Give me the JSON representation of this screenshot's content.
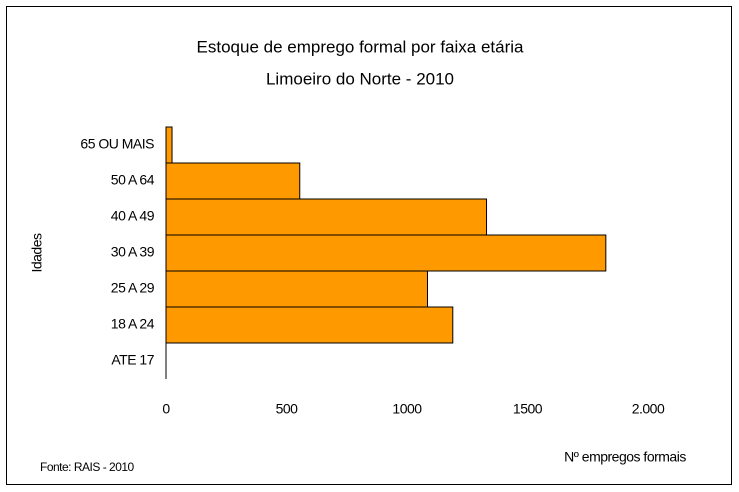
{
  "chart_data": {
    "type": "bar",
    "orientation": "horizontal",
    "title": "Estoque de emprego formal por faixa etária",
    "subtitle": "Limoeiro do Norte  - 2010",
    "y_label": "Idades",
    "x_label": "Nº empregos formais",
    "source": "Fonte: RAIS - 2010",
    "categories": [
      "65 OU MAIS",
      "50 A 64",
      "40 A 49",
      "30 A 39",
      "25 A 29",
      "18 A 24",
      "ATE 17"
    ],
    "values": [
      25,
      555,
      1330,
      1825,
      1085,
      1190,
      0
    ],
    "color": "#ff9900",
    "xlim": [
      0,
      2000
    ],
    "xticks": [
      0,
      500,
      1000,
      1500,
      {
        "value": 2000,
        "label": "2.000"
      }
    ],
    "grid": false
  }
}
